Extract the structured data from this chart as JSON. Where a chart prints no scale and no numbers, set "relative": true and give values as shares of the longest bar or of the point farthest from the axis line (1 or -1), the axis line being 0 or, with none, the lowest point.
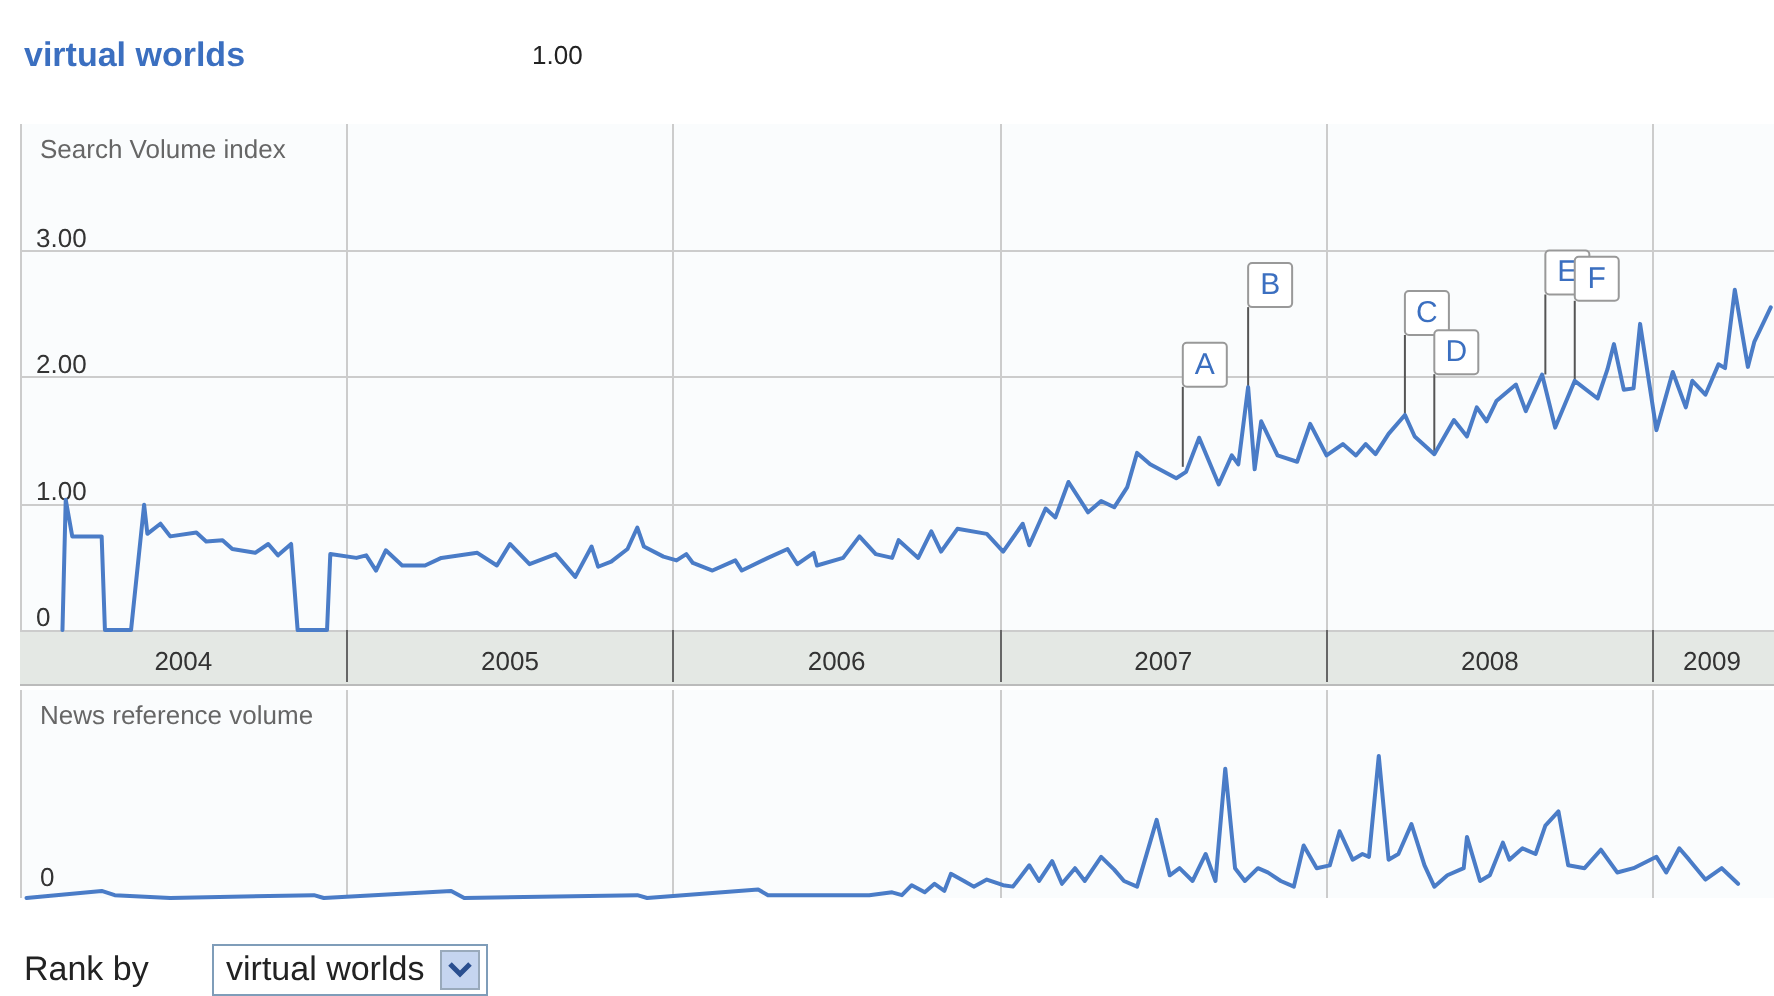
{
  "chart_data": [
    {
      "type": "line",
      "title": "virtual worlds",
      "ylabel": "Search Volume index",
      "annotations": [
        "1.00",
        {
          "text": "A",
          "x": 2007.56,
          "y": 1.29
        },
        {
          "text": "B",
          "x": 2007.76,
          "y": 1.92
        },
        {
          "text": "C",
          "x": 2008.24,
          "y": 1.7
        },
        {
          "text": "D",
          "x": 2008.33,
          "y": 1.39
        },
        {
          "text": "E",
          "x": 2008.67,
          "y": 2.02
        },
        {
          "text": "F",
          "x": 2008.76,
          "y": 1.97
        }
      ],
      "x": [
        2004.13,
        2004.14,
        2004.16,
        2004.25,
        2004.26,
        2004.34,
        2004.38,
        2004.39,
        2004.43,
        2004.46,
        2004.54,
        2004.57,
        2004.62,
        2004.65,
        2004.72,
        2004.76,
        2004.79,
        2004.83,
        2004.85,
        2004.94,
        2004.95,
        2005.03,
        2005.06,
        2005.09,
        2005.12,
        2005.17,
        2005.24,
        2005.29,
        2005.4,
        2005.46,
        2005.5,
        2005.56,
        2005.64,
        2005.7,
        2005.75,
        2005.77,
        2005.81,
        2005.86,
        2005.89,
        2005.91,
        2005.97,
        2006.01,
        2006.04,
        2006.06,
        2006.12,
        2006.19,
        2006.21,
        2006.29,
        2006.35,
        2006.38,
        2006.43,
        2006.44,
        2006.52,
        2006.57,
        2006.62,
        2006.67,
        2006.69,
        2006.75,
        2006.79,
        2006.82,
        2006.87,
        2006.96,
        2007.01,
        2007.07,
        2007.09,
        2007.14,
        2007.17,
        2007.21,
        2007.27,
        2007.31,
        2007.35,
        2007.39,
        2007.42,
        2007.46,
        2007.54,
        2007.57,
        2007.61,
        2007.67,
        2007.71,
        2007.73,
        2007.76,
        2007.78,
        2007.8,
        2007.85,
        2007.91,
        2007.95,
        2008.0,
        2008.05,
        2008.09,
        2008.12,
        2008.15,
        2008.19,
        2008.24,
        2008.27,
        2008.33,
        2008.39,
        2008.43,
        2008.46,
        2008.49,
        2008.52,
        2008.58,
        2008.61,
        2008.66,
        2008.7,
        2008.76,
        2008.83,
        2008.86,
        2008.88,
        2008.91,
        2008.94,
        2008.96,
        2009.01,
        2009.06,
        2009.1,
        2009.12,
        2009.16,
        2009.2,
        2009.22,
        2009.25,
        2009.29,
        2009.31,
        2009.36
      ],
      "series": [
        {
          "color": "#4a7cc7",
          "values": [
            0,
            1.03,
            0.74,
            0.74,
            0,
            0,
            0.99,
            0.76,
            0.84,
            0.74,
            0.77,
            0.7,
            0.71,
            0.64,
            0.61,
            0.68,
            0.59,
            0.68,
            0,
            0,
            0.6,
            0.57,
            0.59,
            0.47,
            0.63,
            0.51,
            0.51,
            0.57,
            0.61,
            0.51,
            0.68,
            0.52,
            0.6,
            0.42,
            0.66,
            0.5,
            0.54,
            0.64,
            0.81,
            0.66,
            0.58,
            0.55,
            0.6,
            0.53,
            0.47,
            0.55,
            0.47,
            0.57,
            0.64,
            0.52,
            0.61,
            0.51,
            0.57,
            0.74,
            0.6,
            0.57,
            0.71,
            0.57,
            0.78,
            0.62,
            0.8,
            0.76,
            0.62,
            0.84,
            0.67,
            0.96,
            0.89,
            1.17,
            0.93,
            1.02,
            0.97,
            1.13,
            1.4,
            1.31,
            1.2,
            1.25,
            1.52,
            1.15,
            1.38,
            1.31,
            1.92,
            1.27,
            1.65,
            1.38,
            1.33,
            1.63,
            1.38,
            1.47,
            1.38,
            1.47,
            1.39,
            1.55,
            1.7,
            1.53,
            1.39,
            1.66,
            1.53,
            1.76,
            1.65,
            1.81,
            1.94,
            1.73,
            2.02,
            1.6,
            1.97,
            1.83,
            2.06,
            2.26,
            1.9,
            1.91,
            2.42,
            1.58,
            2.04,
            1.76,
            1.97,
            1.86,
            2.1,
            2.07,
            2.69,
            2.08,
            2.28,
            2.55
          ]
        }
      ],
      "xlim": [
        2004,
        2009.37
      ],
      "xticks": [
        {
          "value": 2004.5,
          "label": "2004"
        },
        {
          "value": 2005,
          "label": null
        },
        {
          "value": 2005.5,
          "label": "2005"
        },
        {
          "value": 2006,
          "label": null
        },
        {
          "value": 2006.5,
          "label": "2006"
        },
        {
          "value": 2007,
          "label": null
        },
        {
          "value": 2007.5,
          "label": "2007"
        },
        {
          "value": 2008,
          "label": null
        },
        {
          "value": 2008.5,
          "label": "2008"
        },
        {
          "value": 2009,
          "label": null
        },
        {
          "value": 2009.18,
          "label": "2009"
        }
      ],
      "ylim": [
        0,
        4
      ],
      "yticks": [
        0,
        {
          "value": 1,
          "label": "1.00"
        },
        {
          "value": 2,
          "label": "2.00"
        },
        {
          "value": 3,
          "label": "3.00"
        }
      ],
      "grid": true,
      "marker": "none",
      "line_style": "solid"
    },
    {
      "type": "line",
      "ylabel": "News reference volume",
      "relative": true,
      "annotations": [
        "0",
        "Rank by",
        "virtual worlds"
      ],
      "x": [
        2004.02,
        2004.25,
        2004.29,
        2004.46,
        2004.9,
        2004.93,
        2005.32,
        2005.36,
        2005.89,
        2005.92,
        2006.26,
        2006.29,
        2006.33,
        2006.6,
        2006.67,
        2006.7,
        2006.73,
        2006.77,
        2006.8,
        2006.83,
        2006.85,
        2006.89,
        2006.92,
        2006.96,
        2007.01,
        2007.04,
        2007.09,
        2007.12,
        2007.16,
        2007.19,
        2007.23,
        2007.26,
        2007.31,
        2007.35,
        2007.38,
        2007.42,
        2007.48,
        2007.52,
        2007.55,
        2007.59,
        2007.63,
        2007.66,
        2007.69,
        2007.72,
        2007.75,
        2007.79,
        2007.82,
        2007.86,
        2007.9,
        2007.93,
        2007.97,
        2008.01,
        2008.04,
        2008.08,
        2008.11,
        2008.13,
        2008.16,
        2008.19,
        2008.22,
        2008.26,
        2008.3,
        2008.33,
        2008.37,
        2008.42,
        2008.43,
        2008.47,
        2008.5,
        2008.54,
        2008.56,
        2008.6,
        2008.64,
        2008.67,
        2008.71,
        2008.74,
        2008.79,
        2008.84,
        2008.89,
        2008.94,
        2009.01,
        2009.04,
        2009.08,
        2009.11,
        2009.16,
        2009.21,
        2009.26
      ],
      "series": [
        {
          "color": "#4a7cc7",
          "values": [
            0,
            0.05,
            0.02,
            0,
            0.02,
            0,
            0.05,
            0,
            0.02,
            0,
            0.06,
            0.02,
            0.02,
            0.02,
            0.04,
            0.02,
            0.09,
            0.04,
            0.1,
            0.05,
            0.17,
            0.12,
            0.08,
            0.13,
            0.09,
            0.08,
            0.23,
            0.12,
            0.26,
            0.1,
            0.21,
            0.12,
            0.29,
            0.2,
            0.12,
            0.08,
            0.55,
            0.16,
            0.21,
            0.12,
            0.31,
            0.12,
            0.91,
            0.21,
            0.12,
            0.21,
            0.18,
            0.12,
            0.08,
            0.37,
            0.21,
            0.23,
            0.47,
            0.27,
            0.31,
            0.29,
            1,
            0.27,
            0.31,
            0.52,
            0.23,
            0.08,
            0.16,
            0.21,
            0.43,
            0.12,
            0.16,
            0.39,
            0.27,
            0.35,
            0.31,
            0.51,
            0.61,
            0.23,
            0.21,
            0.34,
            0.18,
            0.21,
            0.29,
            0.18,
            0.35,
            0.27,
            0.13,
            0.21,
            0.1
          ]
        }
      ],
      "xlim": [
        2004,
        2009.37
      ],
      "xticks": [
        {
          "value": 2005,
          "label": null
        },
        {
          "value": 2006,
          "label": null
        },
        {
          "value": 2007,
          "label": null
        },
        {
          "value": 2008,
          "label": null
        },
        {
          "value": 2009,
          "label": null
        }
      ],
      "tick_labels": false,
      "grid": "x",
      "marker": "none",
      "line_style": "solid"
    }
  ]
}
